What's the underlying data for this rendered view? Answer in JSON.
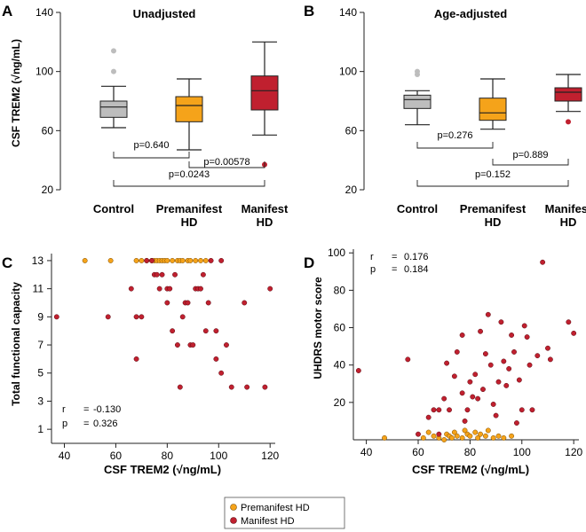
{
  "colors": {
    "control": "#bdbdbd",
    "premanifest": "#f5a31a",
    "manifest": "#c0202f",
    "axis": "#222222"
  },
  "panel_a": {
    "letter": "A",
    "title": "Unadjusted",
    "ylabel": "CSF TREM2 (√ng/mL)",
    "yticks": [
      "20",
      "60",
      "100",
      "140"
    ],
    "xlabels": [
      [
        "Control"
      ],
      [
        "Premanifest",
        "HD"
      ],
      [
        "Manifest",
        "HD"
      ]
    ],
    "pvalues": [
      "p=0.640",
      "p=0.00578",
      "p=0.0243"
    ]
  },
  "panel_b": {
    "letter": "B",
    "title": "Age-adjusted",
    "yticks": [
      "20",
      "60",
      "100",
      "140"
    ],
    "xlabels": [
      [
        "Control"
      ],
      [
        "Premanifest",
        "HD"
      ],
      [
        "Manifest",
        "HD"
      ]
    ],
    "pvalues": [
      "p=0.276",
      "p=0.889",
      "p=0.152"
    ]
  },
  "panel_c": {
    "letter": "C",
    "ylabel": "Total functional capacity",
    "xlabel": "CSF TREM2 (√ng/mL)",
    "xticks": [
      "40",
      "60",
      "80",
      "100",
      "120"
    ],
    "yticks": [
      "1",
      "3",
      "5",
      "7",
      "9",
      "11",
      "13"
    ],
    "stats": {
      "r_label": "r",
      "r_value": "-0.130",
      "p_label": "p",
      "p_value": "0.326"
    }
  },
  "panel_d": {
    "letter": "D",
    "ylabel": "UHDRS motor score",
    "xlabel": "CSF TREM2 (√ng/mL)",
    "xticks": [
      "40",
      "60",
      "80",
      "100",
      "120"
    ],
    "yticks": [
      "20",
      "40",
      "60",
      "80",
      "100"
    ],
    "stats": {
      "r_label": "r",
      "r_value": "0.176",
      "p_label": "p",
      "p_value": "0.184"
    }
  },
  "legend": {
    "items": [
      "Premanifest HD",
      "Manifest HD"
    ]
  },
  "chart_data": [
    {
      "type": "box",
      "title": "Unadjusted",
      "ylabel": "CSF TREM2 (√ng/mL)",
      "ylim": [
        20,
        140
      ],
      "categories": [
        "Control",
        "Premanifest HD",
        "Manifest HD"
      ],
      "boxes": [
        {
          "q1": 69,
          "median": 76,
          "q3": 80,
          "whisker_low": 62,
          "whisker_high": 90,
          "outliers": [
            100,
            114
          ]
        },
        {
          "q1": 66,
          "median": 77,
          "q3": 83,
          "whisker_low": 47,
          "whisker_high": 95,
          "outliers": []
        },
        {
          "q1": 74,
          "median": 87,
          "q3": 97,
          "whisker_low": 57,
          "whisker_high": 120,
          "outliers": [
            37
          ]
        }
      ],
      "comparisons": [
        {
          "groups": [
            "Control",
            "Premanifest HD"
          ],
          "p": "0.640"
        },
        {
          "groups": [
            "Premanifest HD",
            "Manifest HD"
          ],
          "p": "0.00578"
        },
        {
          "groups": [
            "Control",
            "Manifest HD"
          ],
          "p": "0.0243"
        }
      ]
    },
    {
      "type": "box",
      "title": "Age-adjusted",
      "ylim": [
        20,
        140
      ],
      "categories": [
        "Control",
        "Premanifest HD",
        "Manifest HD"
      ],
      "boxes": [
        {
          "q1": 75,
          "median": 81,
          "q3": 84,
          "whisker_low": 64,
          "whisker_high": 87,
          "outliers": [
            98,
            100
          ]
        },
        {
          "q1": 67,
          "median": 72,
          "q3": 82,
          "whisker_low": 61,
          "whisker_high": 95,
          "outliers": []
        },
        {
          "q1": 80,
          "median": 86,
          "q3": 89,
          "whisker_low": 73,
          "whisker_high": 98,
          "outliers": [
            66
          ]
        }
      ],
      "comparisons": [
        {
          "groups": [
            "Control",
            "Premanifest HD"
          ],
          "p": "0.276"
        },
        {
          "groups": [
            "Premanifest HD",
            "Manifest HD"
          ],
          "p": "0.889"
        },
        {
          "groups": [
            "Control",
            "Manifest HD"
          ],
          "p": "0.152"
        }
      ]
    },
    {
      "type": "scatter",
      "xlabel": "CSF TREM2 (√ng/mL)",
      "ylabel": "Total functional capacity",
      "xlim": [
        35,
        122
      ],
      "ylim": [
        0,
        13.5
      ],
      "r": -0.13,
      "p": 0.326,
      "series": [
        {
          "name": "Premanifest HD",
          "points": [
            [
              48,
              13
            ],
            [
              58,
              13
            ],
            [
              68,
              13
            ],
            [
              70,
              13
            ],
            [
              72,
              13
            ],
            [
              74,
              13
            ],
            [
              75,
              13
            ],
            [
              76,
              13
            ],
            [
              77,
              13
            ],
            [
              78,
              13
            ],
            [
              79,
              13
            ],
            [
              80,
              13
            ],
            [
              82,
              13
            ],
            [
              84,
              13
            ],
            [
              85,
              13
            ],
            [
              86,
              13
            ],
            [
              88,
              13
            ],
            [
              89,
              13
            ],
            [
              91,
              13
            ],
            [
              93,
              13
            ],
            [
              95,
              13
            ]
          ]
        },
        {
          "name": "Manifest HD",
          "points": [
            [
              37,
              9
            ],
            [
              57,
              9
            ],
            [
              66,
              11
            ],
            [
              68,
              6
            ],
            [
              68,
              9
            ],
            [
              70,
              9
            ],
            [
              72,
              13
            ],
            [
              74,
              13
            ],
            [
              75,
              12
            ],
            [
              76,
              12
            ],
            [
              77,
              11
            ],
            [
              78,
              12
            ],
            [
              80,
              10
            ],
            [
              80,
              11
            ],
            [
              81,
              11
            ],
            [
              82,
              8
            ],
            [
              83,
              12
            ],
            [
              84,
              7
            ],
            [
              85,
              4
            ],
            [
              86,
              9
            ],
            [
              87,
              10
            ],
            [
              88,
              10
            ],
            [
              89,
              7
            ],
            [
              90,
              7
            ],
            [
              91,
              11
            ],
            [
              92,
              11
            ],
            [
              93,
              11
            ],
            [
              94,
              12
            ],
            [
              95,
              8
            ],
            [
              96,
              10
            ],
            [
              97,
              13
            ],
            [
              99,
              6
            ],
            [
              99,
              8
            ],
            [
              101,
              5
            ],
            [
              101,
              13
            ],
            [
              103,
              7
            ],
            [
              105,
              4
            ],
            [
              110,
              10
            ],
            [
              111,
              4
            ],
            [
              118,
              4
            ],
            [
              120,
              11
            ]
          ]
        }
      ]
    },
    {
      "type": "scatter",
      "xlabel": "CSF TREM2 (√ng/mL)",
      "ylabel": "UHDRS motor score",
      "xlim": [
        35,
        122
      ],
      "ylim": [
        0,
        102
      ],
      "r": 0.176,
      "p": 0.184,
      "series": [
        {
          "name": "Premanifest HD",
          "points": [
            [
              47,
              1
            ],
            [
              62,
              1
            ],
            [
              64,
              4
            ],
            [
              66,
              2
            ],
            [
              68,
              1
            ],
            [
              70,
              0
            ],
            [
              71,
              3
            ],
            [
              72,
              2
            ],
            [
              73,
              1
            ],
            [
              74,
              4
            ],
            [
              75,
              2
            ],
            [
              77,
              1
            ],
            [
              78,
              5
            ],
            [
              79,
              3
            ],
            [
              80,
              2
            ],
            [
              82,
              4
            ],
            [
              83,
              1
            ],
            [
              84,
              3
            ],
            [
              86,
              2
            ],
            [
              87,
              5
            ],
            [
              89,
              1
            ],
            [
              91,
              2
            ],
            [
              93,
              1
            ],
            [
              96,
              2
            ]
          ]
        },
        {
          "name": "Manifest HD",
          "points": [
            [
              37,
              37
            ],
            [
              56,
              43
            ],
            [
              60,
              3
            ],
            [
              64,
              12
            ],
            [
              66,
              16
            ],
            [
              68,
              3
            ],
            [
              68,
              16
            ],
            [
              70,
              22
            ],
            [
              71,
              41
            ],
            [
              72,
              16
            ],
            [
              74,
              34
            ],
            [
              75,
              47
            ],
            [
              77,
              25
            ],
            [
              77,
              56
            ],
            [
              78,
              10
            ],
            [
              79,
              16
            ],
            [
              80,
              31
            ],
            [
              81,
              23
            ],
            [
              82,
              35
            ],
            [
              83,
              22
            ],
            [
              84,
              58
            ],
            [
              85,
              27
            ],
            [
              86,
              46
            ],
            [
              87,
              67
            ],
            [
              88,
              40
            ],
            [
              89,
              19
            ],
            [
              90,
              13
            ],
            [
              91,
              31
            ],
            [
              92,
              63
            ],
            [
              93,
              42
            ],
            [
              94,
              29
            ],
            [
              95,
              38
            ],
            [
              96,
              56
            ],
            [
              97,
              47
            ],
            [
              98,
              9
            ],
            [
              99,
              32
            ],
            [
              100,
              16
            ],
            [
              101,
              61
            ],
            [
              102,
              55
            ],
            [
              103,
              40
            ],
            [
              104,
              16
            ],
            [
              106,
              45
            ],
            [
              108,
              95
            ],
            [
              110,
              49
            ],
            [
              111,
              43
            ],
            [
              118,
              63
            ],
            [
              120,
              57
            ]
          ]
        }
      ]
    }
  ]
}
